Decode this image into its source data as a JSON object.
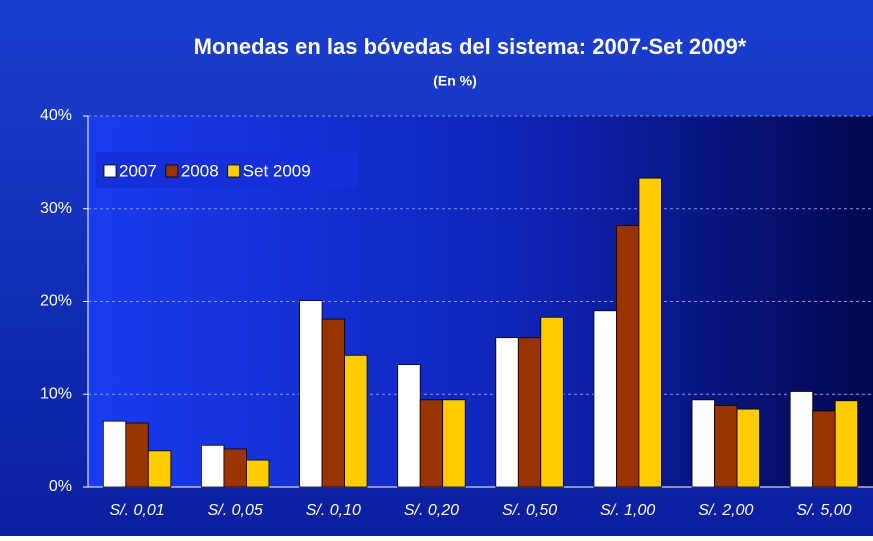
{
  "chart_data": {
    "type": "bar",
    "title": "Monedas en las bóvedas del sistema: 2007-Set 2009*",
    "subtitle": "(En  %)",
    "categories": [
      "S/. 0,01",
      "S/. 0,05",
      "S/. 0,10",
      "S/. 0,20",
      "S/. 0,50",
      "S/. 1,00",
      "S/. 2,00",
      "S/. 5,00"
    ],
    "series": [
      {
        "name": "2007",
        "color": "#ffffff",
        "values": [
          7.1,
          4.5,
          20.1,
          13.2,
          16.1,
          19.0,
          9.4,
          10.3
        ]
      },
      {
        "name": "2008",
        "color": "#993300",
        "values": [
          6.9,
          4.1,
          18.1,
          9.4,
          16.1,
          28.2,
          8.8,
          8.2
        ]
      },
      {
        "name": "Set 2009",
        "color": "#ffcc00",
        "values": [
          3.9,
          2.9,
          14.2,
          9.4,
          18.3,
          33.3,
          8.4,
          9.3
        ]
      }
    ],
    "ylim": [
      0,
      40
    ],
    "yticks": [
      {
        "value": 0,
        "label": "0%"
      },
      {
        "value": 10,
        "label": "10%"
      },
      {
        "value": 20,
        "label": "20%"
      },
      {
        "value": 30,
        "label": "30%"
      },
      {
        "value": 40,
        "label": "40%"
      }
    ],
    "grid": true,
    "legend": "top-left"
  }
}
